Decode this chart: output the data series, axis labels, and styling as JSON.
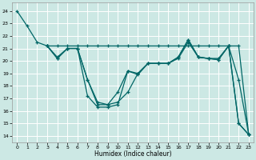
{
  "xlabel": "Humidex (Indice chaleur)",
  "bg_color": "#cce8e4",
  "grid_color": "#ffffff",
  "line_color": "#006666",
  "xlim": [
    -0.5,
    23.5
  ],
  "ylim": [
    13.5,
    24.7
  ],
  "yticks": [
    14,
    15,
    16,
    17,
    18,
    19,
    20,
    21,
    22,
    23,
    24
  ],
  "xticks": [
    0,
    1,
    2,
    3,
    4,
    5,
    6,
    7,
    8,
    9,
    10,
    11,
    12,
    13,
    14,
    15,
    16,
    17,
    18,
    19,
    20,
    21,
    22,
    23
  ],
  "lines": [
    {
      "x": [
        0,
        1,
        2,
        3,
        4,
        5,
        6,
        7,
        8,
        9,
        10,
        11,
        12,
        13,
        14,
        15,
        16,
        17,
        18,
        19,
        20,
        21,
        22,
        23
      ],
      "y": [
        24,
        22.8,
        21.5,
        21.2,
        20.2,
        21.0,
        21.0,
        17.2,
        16.3,
        16.3,
        16.5,
        19.2,
        19.0,
        19.8,
        19.8,
        19.8,
        20.3,
        21.7,
        20.3,
        20.2,
        20.2,
        21.2,
        18.5,
        14.1
      ]
    },
    {
      "x": [
        3,
        4,
        5,
        6,
        7,
        8,
        9,
        10,
        11,
        12,
        13,
        14,
        15,
        16,
        17,
        18,
        19,
        20,
        21,
        22,
        23
      ],
      "y": [
        21.2,
        21.2,
        21.2,
        21.2,
        21.2,
        21.2,
        21.2,
        21.2,
        21.2,
        21.2,
        21.2,
        21.2,
        21.2,
        21.2,
        21.2,
        21.2,
        21.2,
        21.2,
        21.2,
        21.2,
        14.1
      ]
    },
    {
      "x": [
        3,
        4,
        5,
        6,
        7,
        8,
        9,
        10,
        11,
        12,
        13,
        14,
        15,
        16,
        17,
        18,
        19,
        20,
        21,
        22,
        23
      ],
      "y": [
        21.2,
        20.3,
        21.0,
        21.0,
        18.5,
        16.7,
        16.5,
        17.5,
        19.2,
        18.9,
        19.8,
        19.8,
        19.8,
        20.3,
        21.7,
        20.3,
        20.2,
        20.1,
        21.2,
        15.0,
        14.1
      ]
    },
    {
      "x": [
        3,
        4,
        5,
        6,
        7,
        8,
        9,
        10,
        11,
        12,
        13,
        14,
        15,
        16,
        17,
        18,
        19,
        20,
        21,
        22,
        23
      ],
      "y": [
        21.2,
        20.2,
        21.0,
        21.0,
        18.5,
        16.5,
        16.5,
        16.7,
        17.5,
        19.0,
        19.8,
        19.8,
        19.8,
        20.2,
        21.5,
        20.3,
        20.2,
        20.1,
        21.2,
        15.0,
        14.1
      ]
    }
  ]
}
